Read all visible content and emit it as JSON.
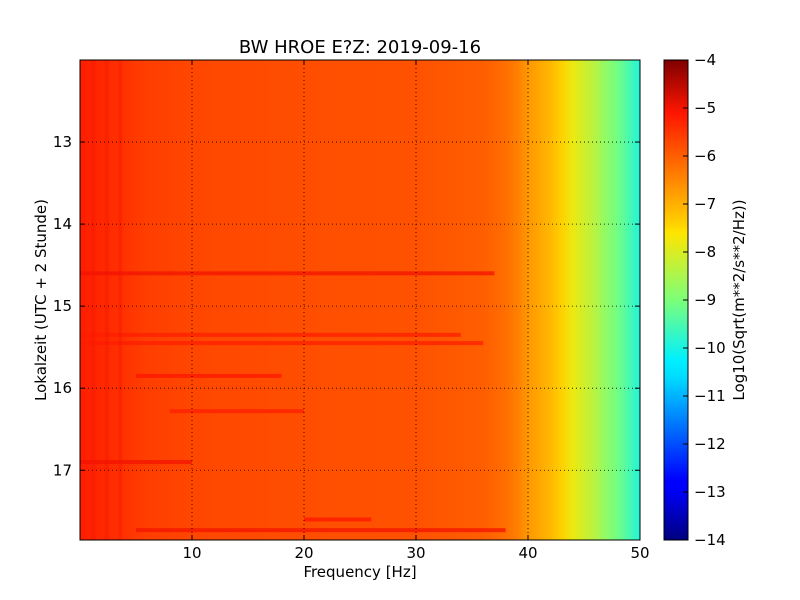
{
  "chart_data": {
    "type": "heatmap",
    "title": "BW HROE E?Z: 2019-09-16",
    "xlabel": "Frequency [Hz]",
    "ylabel": "Lokalzeit (UTC + 2 Stunde)",
    "xlim": [
      0,
      50
    ],
    "ylim": [
      12.0,
      17.85
    ],
    "y_inverted": true,
    "x_ticks": [
      10,
      20,
      30,
      40,
      50
    ],
    "y_ticks": [
      13,
      14,
      15,
      16,
      17
    ],
    "grid": true,
    "colormap": "jet",
    "colorbar": {
      "label": "Log10(Sqrt(m**2/s**2/Hz))",
      "range": [
        -14,
        -4
      ],
      "ticks": [
        -4,
        -5,
        -6,
        -7,
        -8,
        -9,
        -10,
        -11,
        -12,
        -13,
        -14
      ]
    },
    "spectrum_profile": {
      "frequency_hz": [
        0,
        3,
        6,
        10,
        20,
        30,
        36,
        38,
        39,
        40,
        41,
        42,
        43,
        44,
        45,
        46,
        47,
        48,
        49,
        50
      ],
      "log10_amplitude": [
        -5.2,
        -5.4,
        -5.6,
        -5.7,
        -5.8,
        -5.85,
        -6.0,
        -6.2,
        -6.4,
        -6.7,
        -6.9,
        -7.1,
        -7.4,
        -7.8,
        -8.1,
        -8.4,
        -8.8,
        -9.1,
        -9.5,
        -9.9
      ]
    },
    "bands": [
      {
        "hour": 14.6,
        "f_start": 0,
        "f_end": 37,
        "log10_amplitude": -5.0
      },
      {
        "hour": 15.35,
        "f_start": 0,
        "f_end": 34,
        "log10_amplitude": -5.2
      },
      {
        "hour": 15.45,
        "f_start": 0,
        "f_end": 36,
        "log10_amplitude": -5.2
      },
      {
        "hour": 15.85,
        "f_start": 5,
        "f_end": 18,
        "log10_amplitude": -5.1
      },
      {
        "hour": 16.28,
        "f_start": 8,
        "f_end": 20,
        "log10_amplitude": -5.2
      },
      {
        "hour": 16.9,
        "f_start": 0,
        "f_end": 10,
        "log10_amplitude": -5.0
      },
      {
        "hour": 17.6,
        "f_start": 20,
        "f_end": 26,
        "log10_amplitude": -5.1
      },
      {
        "hour": 17.73,
        "f_start": 5,
        "f_end": 38,
        "log10_amplitude": -5.0
      }
    ]
  },
  "colors": {
    "frame": "#000000",
    "grid": "#000000"
  }
}
